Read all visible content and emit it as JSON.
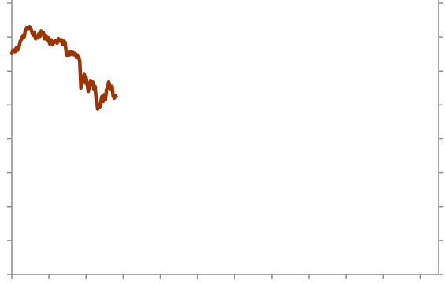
{
  "chart_data": {
    "type": "line",
    "title": "",
    "xlabel": "",
    "ylabel": "",
    "grid": false,
    "legend": "none",
    "xlim": [
      0,
      11.5
    ],
    "ylim": [
      0,
      8
    ],
    "x_ticks": [
      0,
      1,
      2,
      3,
      4,
      5,
      6,
      7,
      8,
      9,
      10,
      11
    ],
    "y_ticks": [
      0,
      1,
      2,
      3,
      4,
      5,
      6,
      7,
      8
    ],
    "y_ticks_right": true,
    "series": [
      {
        "color": "#9b3303",
        "line_width_note": "thick",
        "points": [
          [
            0.0,
            6.52
          ],
          [
            0.04,
            6.62
          ],
          [
            0.08,
            6.55
          ],
          [
            0.12,
            6.68
          ],
          [
            0.16,
            6.62
          ],
          [
            0.19,
            6.7
          ],
          [
            0.23,
            6.88
          ],
          [
            0.27,
            6.95
          ],
          [
            0.3,
            7.05
          ],
          [
            0.33,
            7.0
          ],
          [
            0.36,
            7.18
          ],
          [
            0.4,
            7.28
          ],
          [
            0.44,
            7.25
          ],
          [
            0.48,
            7.3
          ],
          [
            0.52,
            7.22
          ],
          [
            0.55,
            7.12
          ],
          [
            0.58,
            7.05
          ],
          [
            0.61,
            7.15
          ],
          [
            0.64,
            6.95
          ],
          [
            0.67,
            7.0
          ],
          [
            0.7,
            6.98
          ],
          [
            0.73,
            7.1
          ],
          [
            0.76,
            7.02
          ],
          [
            0.79,
            7.18
          ],
          [
            0.82,
            7.08
          ],
          [
            0.85,
            7.14
          ],
          [
            0.88,
            6.95
          ],
          [
            0.92,
            7.05
          ],
          [
            0.95,
            6.92
          ],
          [
            0.98,
            6.98
          ],
          [
            1.02,
            6.8
          ],
          [
            1.06,
            6.92
          ],
          [
            1.1,
            6.78
          ],
          [
            1.14,
            6.85
          ],
          [
            1.18,
            6.9
          ],
          [
            1.22,
            6.82
          ],
          [
            1.26,
            6.95
          ],
          [
            1.3,
            6.88
          ],
          [
            1.34,
            6.92
          ],
          [
            1.37,
            6.78
          ],
          [
            1.4,
            6.88
          ],
          [
            1.43,
            6.85
          ],
          [
            1.45,
            6.7
          ],
          [
            1.47,
            6.5
          ],
          [
            1.5,
            6.45
          ],
          [
            1.53,
            6.55
          ],
          [
            1.56,
            6.48
          ],
          [
            1.59,
            6.58
          ],
          [
            1.62,
            6.5
          ],
          [
            1.65,
            6.55
          ],
          [
            1.68,
            6.48
          ],
          [
            1.71,
            6.52
          ],
          [
            1.74,
            6.4
          ],
          [
            1.77,
            6.45
          ],
          [
            1.8,
            6.4
          ],
          [
            1.83,
            6.3
          ],
          [
            1.85,
            5.8
          ],
          [
            1.86,
            5.5
          ],
          [
            1.89,
            5.85
          ],
          [
            1.92,
            5.7
          ],
          [
            1.95,
            5.9
          ],
          [
            1.98,
            5.65
          ],
          [
            2.0,
            5.8
          ],
          [
            2.03,
            5.6
          ],
          [
            2.06,
            5.4
          ],
          [
            2.09,
            5.55
          ],
          [
            2.12,
            5.7
          ],
          [
            2.15,
            5.6
          ],
          [
            2.18,
            5.68
          ],
          [
            2.21,
            5.45
          ],
          [
            2.24,
            5.55
          ],
          [
            2.27,
            5.2
          ],
          [
            2.29,
            5.08
          ],
          [
            2.31,
            4.88
          ],
          [
            2.34,
            5.0
          ],
          [
            2.37,
            4.92
          ],
          [
            2.4,
            5.1
          ],
          [
            2.43,
            5.25
          ],
          [
            2.46,
            5.1
          ],
          [
            2.49,
            5.3
          ],
          [
            2.52,
            5.15
          ],
          [
            2.55,
            5.45
          ],
          [
            2.58,
            5.5
          ],
          [
            2.61,
            5.68
          ],
          [
            2.64,
            5.58
          ],
          [
            2.67,
            5.45
          ],
          [
            2.7,
            5.55
          ],
          [
            2.73,
            5.25
          ],
          [
            2.76,
            5.2
          ],
          [
            2.78,
            5.28
          ],
          [
            2.81,
            5.25
          ]
        ]
      }
    ]
  }
}
